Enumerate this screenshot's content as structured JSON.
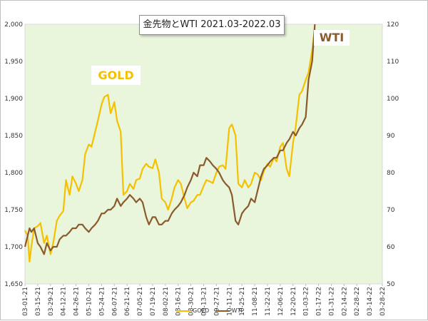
{
  "chart_data": {
    "type": "line",
    "title": "金先物とWTI 2021.03-2022.03",
    "annotations": [
      "GOLD",
      "WTI"
    ],
    "x_ticks": [
      "03-01-21",
      "03-15-21",
      "03-29-21",
      "04-12-21",
      "04-26-21",
      "05-10-21",
      "05-24-21",
      "06-07-21",
      "06-21-21",
      "07-05-21",
      "07-19-21",
      "08-02-21",
      "08-16-21",
      "08-30-21",
      "09-13-21",
      "09-27-21",
      "10-11-21",
      "10-25-21",
      "11-08-21",
      "11-22-21",
      "12-06-21",
      "12-20-21",
      "01-03-22",
      "01-17-22",
      "01-31-22",
      "02-14-22",
      "02-28-22",
      "03-14-22",
      "03-28-22"
    ],
    "y_left_ticks": [
      "1,650",
      "1,700",
      "1,750",
      "1,800",
      "1,850",
      "1,900",
      "1,950",
      "2,000"
    ],
    "y_right_ticks": [
      "50",
      "60",
      "70",
      "80",
      "90",
      "100",
      "110",
      "120"
    ],
    "y_left_range": [
      1650,
      2000
    ],
    "y_right_range": [
      50,
      120
    ],
    "x_range_days": [
      0,
      392
    ],
    "grid": false,
    "legend_position": "bottom",
    "colors": {
      "gold": "#f5c000",
      "wti": "#8b5a2b",
      "plot_background": "#e9f6dc"
    },
    "series": [
      {
        "name": "GOLD",
        "axis": "left",
        "points": [
          [
            0,
            1722
          ],
          [
            3,
            1715
          ],
          [
            5,
            1680
          ],
          [
            7,
            1700
          ],
          [
            10,
            1725
          ],
          [
            14,
            1728
          ],
          [
            17,
            1732
          ],
          [
            21,
            1705
          ],
          [
            24,
            1715
          ],
          [
            28,
            1690
          ],
          [
            31,
            1705
          ],
          [
            35,
            1735
          ],
          [
            38,
            1742
          ],
          [
            42,
            1748
          ],
          [
            45,
            1790
          ],
          [
            49,
            1770
          ],
          [
            52,
            1795
          ],
          [
            56,
            1785
          ],
          [
            59,
            1775
          ],
          [
            63,
            1790
          ],
          [
            66,
            1825
          ],
          [
            70,
            1838
          ],
          [
            73,
            1835
          ],
          [
            77,
            1855
          ],
          [
            80,
            1870
          ],
          [
            84,
            1892
          ],
          [
            87,
            1902
          ],
          [
            91,
            1905
          ],
          [
            94,
            1880
          ],
          [
            98,
            1895
          ],
          [
            101,
            1870
          ],
          [
            105,
            1855
          ],
          [
            108,
            1770
          ],
          [
            112,
            1775
          ],
          [
            115,
            1785
          ],
          [
            119,
            1778
          ],
          [
            122,
            1790
          ],
          [
            126,
            1792
          ],
          [
            129,
            1805
          ],
          [
            133,
            1812
          ],
          [
            136,
            1808
          ],
          [
            140,
            1806
          ],
          [
            143,
            1818
          ],
          [
            147,
            1800
          ],
          [
            150,
            1765
          ],
          [
            154,
            1760
          ],
          [
            157,
            1750
          ],
          [
            161,
            1765
          ],
          [
            164,
            1780
          ],
          [
            168,
            1790
          ],
          [
            171,
            1785
          ],
          [
            175,
            1765
          ],
          [
            178,
            1752
          ],
          [
            182,
            1760
          ],
          [
            185,
            1762
          ],
          [
            189,
            1770
          ],
          [
            192,
            1770
          ],
          [
            196,
            1782
          ],
          [
            199,
            1790
          ],
          [
            203,
            1788
          ],
          [
            206,
            1786
          ],
          [
            210,
            1800
          ],
          [
            213,
            1808
          ],
          [
            217,
            1810
          ],
          [
            220,
            1805
          ],
          [
            224,
            1860
          ],
          [
            227,
            1865
          ],
          [
            231,
            1850
          ],
          [
            234,
            1785
          ],
          [
            238,
            1780
          ],
          [
            241,
            1790
          ],
          [
            245,
            1780
          ],
          [
            248,
            1785
          ],
          [
            252,
            1800
          ],
          [
            255,
            1798
          ],
          [
            259,
            1790
          ],
          [
            262,
            1802
          ],
          [
            266,
            1812
          ],
          [
            269,
            1808
          ],
          [
            273,
            1820
          ],
          [
            276,
            1815
          ],
          [
            280,
            1835
          ],
          [
            283,
            1840
          ],
          [
            287,
            1805
          ],
          [
            290,
            1795
          ],
          [
            294,
            1840
          ],
          [
            297,
            1862
          ],
          [
            301,
            1905
          ],
          [
            304,
            1910
          ],
          [
            308,
            1925
          ],
          [
            311,
            1935
          ],
          [
            315,
            1965
          ],
          [
            318,
            1995
          ]
        ]
      },
      {
        "name": "WTI",
        "axis": "right",
        "points": [
          [
            0,
            60
          ],
          [
            3,
            63
          ],
          [
            5,
            65
          ],
          [
            7,
            64
          ],
          [
            10,
            65
          ],
          [
            14,
            61
          ],
          [
            17,
            60
          ],
          [
            21,
            58
          ],
          [
            24,
            61
          ],
          [
            28,
            59
          ],
          [
            31,
            60
          ],
          [
            35,
            60
          ],
          [
            38,
            62
          ],
          [
            42,
            63
          ],
          [
            45,
            63
          ],
          [
            49,
            64
          ],
          [
            52,
            65
          ],
          [
            56,
            65
          ],
          [
            59,
            66
          ],
          [
            63,
            66
          ],
          [
            66,
            65
          ],
          [
            70,
            64
          ],
          [
            73,
            65
          ],
          [
            77,
            66
          ],
          [
            80,
            67
          ],
          [
            84,
            69
          ],
          [
            87,
            69
          ],
          [
            91,
            70
          ],
          [
            94,
            70
          ],
          [
            98,
            71
          ],
          [
            101,
            73
          ],
          [
            105,
            71
          ],
          [
            108,
            72
          ],
          [
            112,
            73
          ],
          [
            115,
            74
          ],
          [
            119,
            73
          ],
          [
            122,
            72
          ],
          [
            126,
            73
          ],
          [
            129,
            72
          ],
          [
            133,
            68
          ],
          [
            136,
            66
          ],
          [
            140,
            68
          ],
          [
            143,
            68
          ],
          [
            147,
            66
          ],
          [
            150,
            66
          ],
          [
            154,
            67
          ],
          [
            157,
            67
          ],
          [
            161,
            69
          ],
          [
            164,
            70
          ],
          [
            168,
            71
          ],
          [
            171,
            72
          ],
          [
            175,
            74
          ],
          [
            178,
            76
          ],
          [
            182,
            78
          ],
          [
            185,
            80
          ],
          [
            189,
            79
          ],
          [
            192,
            82
          ],
          [
            196,
            82
          ],
          [
            199,
            84
          ],
          [
            203,
            83
          ],
          [
            206,
            82
          ],
          [
            210,
            81
          ],
          [
            213,
            80
          ],
          [
            217,
            78
          ],
          [
            220,
            77
          ],
          [
            224,
            76
          ],
          [
            227,
            74
          ],
          [
            231,
            67
          ],
          [
            234,
            66
          ],
          [
            238,
            69
          ],
          [
            241,
            70
          ],
          [
            245,
            71
          ],
          [
            248,
            73
          ],
          [
            252,
            72
          ],
          [
            255,
            75
          ],
          [
            259,
            79
          ],
          [
            262,
            81
          ],
          [
            266,
            82
          ],
          [
            269,
            83
          ],
          [
            273,
            84
          ],
          [
            276,
            84
          ],
          [
            280,
            86
          ],
          [
            283,
            86
          ],
          [
            287,
            88
          ],
          [
            290,
            89
          ],
          [
            294,
            91
          ],
          [
            297,
            90
          ],
          [
            301,
            92
          ],
          [
            304,
            93
          ],
          [
            308,
            95
          ],
          [
            311,
            105
          ],
          [
            315,
            110
          ],
          [
            318,
            120
          ]
        ]
      }
    ]
  }
}
